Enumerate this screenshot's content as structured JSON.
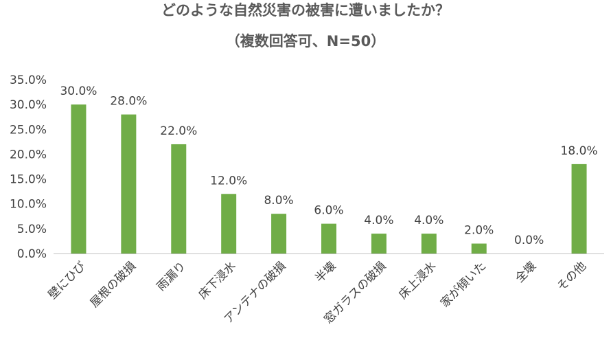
{
  "chart_data": {
    "type": "bar",
    "title": "どのような自然災害の被害に遭いましたか？",
    "subtitle": "（複数回答可、N=50）",
    "categories": [
      "壁にひび",
      "屋根の破損",
      "雨漏り",
      "床下浸水",
      "アンテナの破損",
      "半壊",
      "窓ガラスの破損",
      "床上浸水",
      "家が傾いた",
      "全壊",
      "その他"
    ],
    "values": [
      30.0,
      28.0,
      22.0,
      12.0,
      8.0,
      6.0,
      4.0,
      4.0,
      2.0,
      0.0,
      18.0
    ],
    "data_labels": [
      "30.0%",
      "28.0%",
      "22.0%",
      "12.0%",
      "8.0%",
      "6.0%",
      "4.0%",
      "4.0%",
      "2.0%",
      "0.0%",
      "18.0%"
    ],
    "yticks": [
      0,
      5,
      10,
      15,
      20,
      25,
      30,
      35
    ],
    "ytick_labels": [
      "0.0%",
      "5.0%",
      "10.0%",
      "15.0%",
      "20.0%",
      "25.0%",
      "30.0%",
      "35.0%"
    ],
    "ylim": [
      0,
      35
    ],
    "xlabel": "",
    "ylabel": "",
    "grid": false,
    "legend": "none",
    "bar_color": "#70ad47"
  }
}
